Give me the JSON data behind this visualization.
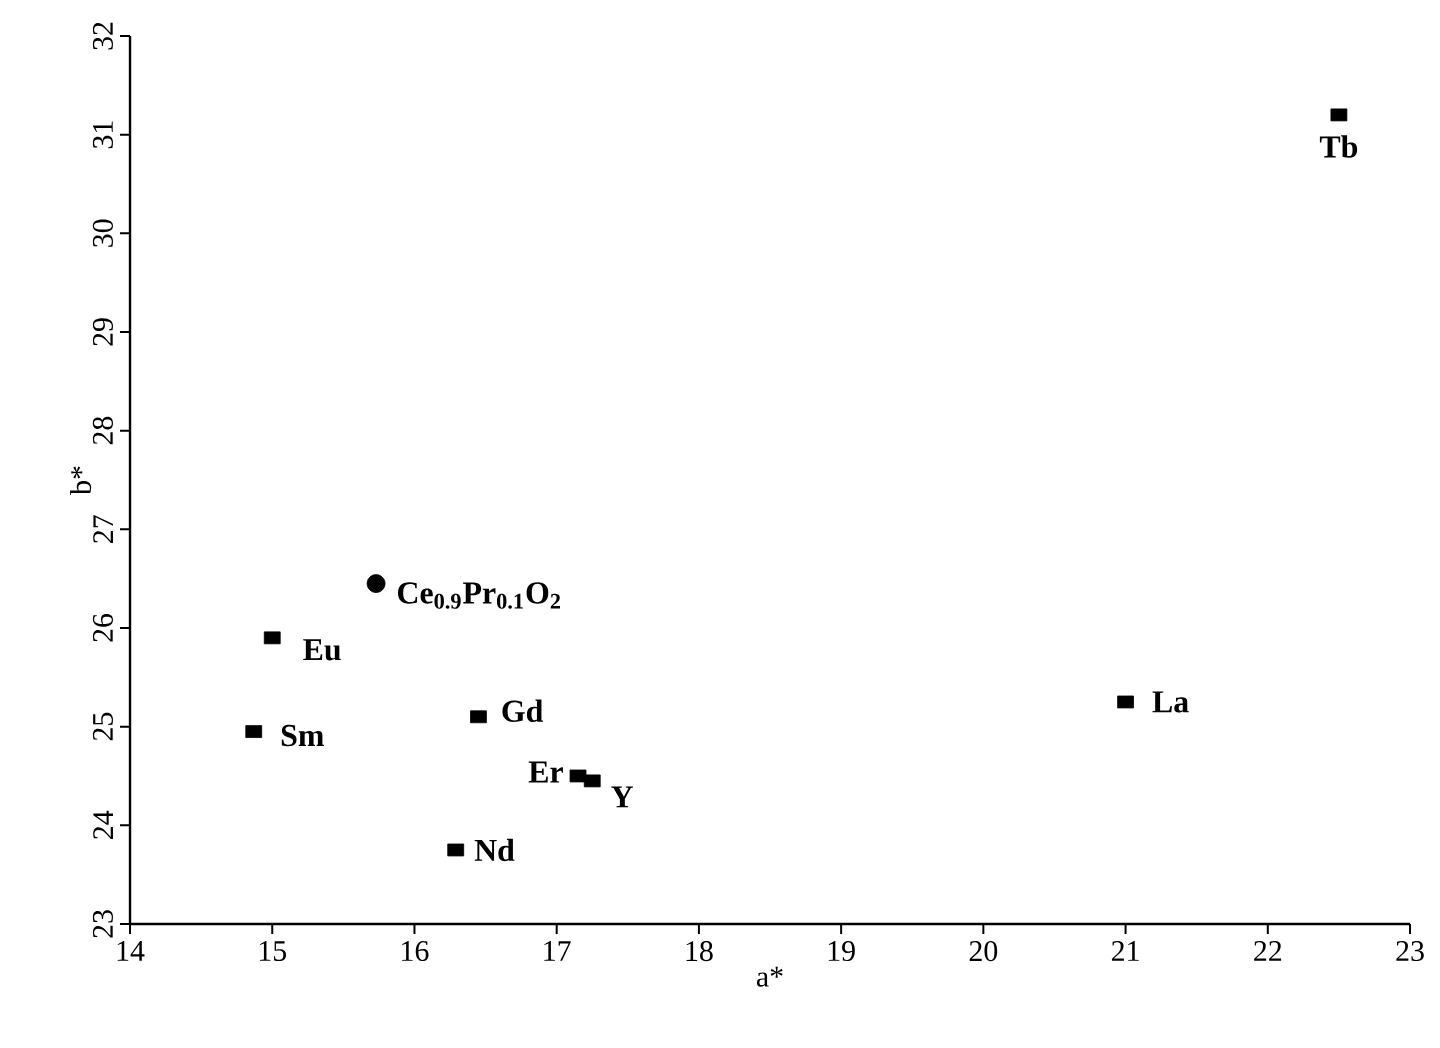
{
  "chart_data": {
    "type": "scatter",
    "xlabel": "a*",
    "ylabel": "b*",
    "xlim": [
      14,
      23
    ],
    "ylim": [
      23,
      32
    ],
    "xticks": [
      14,
      15,
      16,
      17,
      18,
      19,
      20,
      21,
      22,
      23
    ],
    "yticks": [
      23,
      24,
      25,
      26,
      27,
      28,
      29,
      30,
      31,
      32
    ],
    "grid": false,
    "series": [
      {
        "color": "#000000",
        "marker": "square",
        "x": [
          22.5,
          21.0,
          15.0,
          14.87,
          16.45,
          17.15,
          17.25,
          16.29
        ],
        "values": [
          31.2,
          25.25,
          25.9,
          24.95,
          25.1,
          24.5,
          24.45,
          23.75
        ]
      },
      {
        "color": "#000000",
        "marker": "circle",
        "x": [
          15.73
        ],
        "values": [
          26.45
        ]
      }
    ],
    "annotations": [
      {
        "text": "Tb",
        "x": 22.5,
        "y": 31.2
      },
      {
        "text": "La",
        "x": 21.0,
        "y": 25.25
      },
      {
        "text": "Ce$_{0.9}$Pr$_{0.1}$O$_{2}$",
        "x": 15.73,
        "y": 26.45
      },
      {
        "text": "Eu",
        "x": 15.0,
        "y": 25.9
      },
      {
        "text": "Sm",
        "x": 14.87,
        "y": 24.95
      },
      {
        "text": "Gd",
        "x": 16.45,
        "y": 25.1
      },
      {
        "text": "Er",
        "x": 17.15,
        "y": 24.5
      },
      {
        "text": "Y",
        "x": 17.25,
        "y": 24.45
      },
      {
        "text": "Nd",
        "x": 16.29,
        "y": 23.75
      }
    ]
  }
}
